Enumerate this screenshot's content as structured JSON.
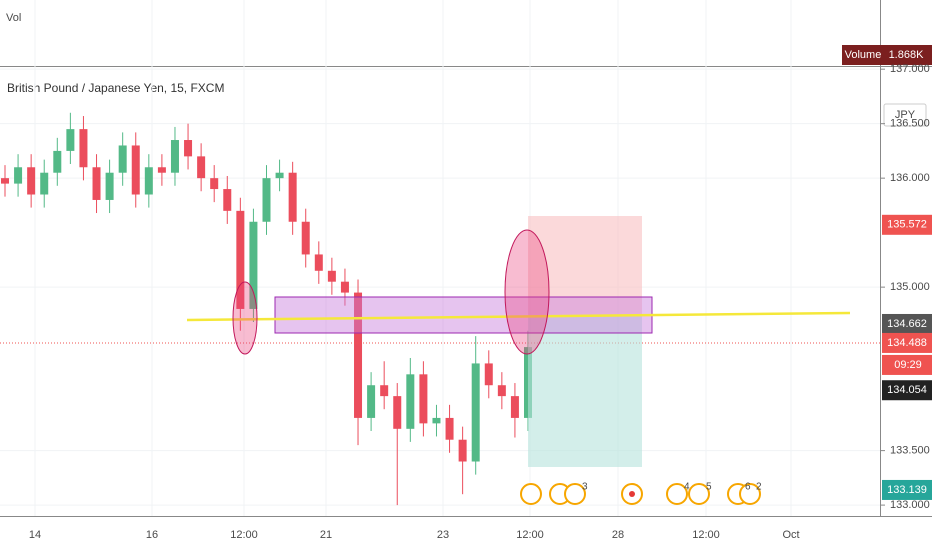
{
  "header": {
    "vol_label": "Vol",
    "symbol": "British Pound / Japanese Yen, 15, FXCM",
    "currency": "JPY"
  },
  "volume_tag": {
    "name": "Volume",
    "value": "1.868K"
  },
  "price_axis": {
    "ylim": [
      132.9,
      137.02
    ],
    "ticks": [
      {
        "value": 137,
        "label": "137.000"
      },
      {
        "value": 136.5,
        "label": "136.500"
      },
      {
        "value": 136,
        "label": "136.000"
      },
      {
        "value": 135,
        "label": "135.000"
      },
      {
        "value": 133.5,
        "label": "133.500"
      },
      {
        "value": 133,
        "label": "133.000"
      }
    ]
  },
  "price_tags": [
    {
      "value": 135.572,
      "label": "135.572",
      "color": "#ef5350"
    },
    {
      "value": 134.662,
      "label": "134.662",
      "color": "#555555"
    },
    {
      "value": 134.488,
      "label": "134.488",
      "color": "#ef5350"
    },
    {
      "value": 134.054,
      "label": "134.054",
      "color": "#222222"
    },
    {
      "value": 133.139,
      "label": "133.139",
      "color": "#26a69a"
    }
  ],
  "countdown": "09:29",
  "time_axis": [
    "14",
    "16",
    "12:00",
    "21",
    "23",
    "12:00",
    "28",
    "12:00",
    "Oct"
  ],
  "events": [
    "3",
    "4",
    "5",
    "6",
    "2"
  ],
  "candles": {
    "open": [
      136.0,
      135.95,
      136.1,
      135.85,
      136.05,
      136.25,
      136.45,
      136.1,
      135.8,
      136.05,
      136.3,
      135.85,
      136.1,
      136.05,
      136.35,
      136.2,
      136.0,
      135.9,
      135.7,
      134.8,
      135.6,
      136.0,
      136.05,
      135.6,
      135.3,
      135.15,
      135.05,
      134.95,
      133.8,
      134.1,
      134.0,
      133.7,
      134.2,
      133.75,
      133.8,
      133.6,
      133.4,
      134.3,
      134.1,
      134.0,
      133.8
    ],
    "high": [
      136.12,
      136.22,
      136.22,
      136.17,
      136.37,
      136.6,
      136.57,
      136.22,
      136.17,
      136.42,
      136.42,
      136.22,
      136.22,
      136.47,
      136.5,
      136.32,
      136.12,
      136.02,
      135.82,
      135.72,
      136.12,
      136.17,
      136.15,
      135.72,
      135.42,
      135.27,
      135.17,
      135.07,
      134.22,
      134.32,
      134.12,
      134.35,
      134.32,
      133.92,
      133.92,
      133.72,
      134.55,
      134.42,
      134.22,
      134.12,
      134.6
    ],
    "low": [
      135.83,
      135.83,
      135.73,
      135.73,
      135.93,
      136.13,
      135.98,
      135.68,
      135.68,
      135.93,
      135.73,
      135.73,
      135.93,
      135.93,
      136.08,
      135.88,
      135.78,
      135.58,
      134.6,
      134.68,
      135.48,
      135.88,
      135.48,
      135.18,
      135.03,
      134.93,
      134.83,
      133.55,
      133.68,
      133.88,
      133.0,
      133.58,
      133.63,
      133.63,
      133.48,
      133.1,
      133.28,
      133.98,
      133.88,
      133.62,
      133.68
    ],
    "close": [
      135.95,
      136.1,
      135.85,
      136.05,
      136.25,
      136.45,
      136.1,
      135.8,
      136.05,
      136.3,
      135.85,
      136.1,
      136.05,
      136.35,
      136.2,
      136.0,
      135.9,
      135.7,
      134.8,
      135.6,
      136.0,
      136.05,
      135.6,
      135.3,
      135.15,
      135.05,
      134.95,
      133.8,
      134.1,
      134.0,
      133.7,
      134.2,
      133.75,
      133.8,
      133.6,
      133.4,
      134.3,
      134.1,
      134.0,
      133.8,
      134.45
    ],
    "up_color": "#53b987",
    "down_color": "#eb4d5c"
  }
}
